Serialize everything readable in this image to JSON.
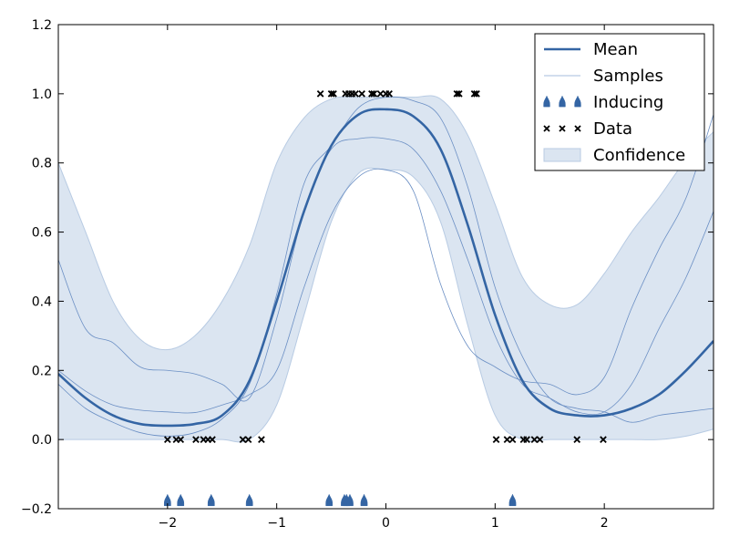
{
  "chart_data": {
    "type": "line",
    "title": "",
    "xlabel": "",
    "ylabel": "",
    "xlim": [
      -3,
      3
    ],
    "ylim": [
      -0.2,
      1.2
    ],
    "xticks": [
      -2,
      -1,
      0,
      1,
      2
    ],
    "xtick_labels": [
      "−2",
      "−1",
      "0",
      "1",
      "2"
    ],
    "yticks": [
      -0.2,
      0.0,
      0.2,
      0.4,
      0.6,
      0.8,
      1.0,
      1.2
    ],
    "ytick_labels": [
      "−0.2",
      "0.0",
      "0.2",
      "0.4",
      "0.6",
      "0.8",
      "1.0",
      "1.2"
    ],
    "grid": false,
    "legend_position": "top-right",
    "legend": [
      {
        "label": "Mean",
        "kind": "line"
      },
      {
        "label": "Samples",
        "kind": "thin-line"
      },
      {
        "label": "Inducing",
        "kind": "marker"
      },
      {
        "label": "Data",
        "kind": "x"
      },
      {
        "label": "Confidence",
        "kind": "band"
      }
    ],
    "colors": {
      "mean": "#3465a4",
      "samples": "#6b8fc4",
      "confidence_fill": "#dbe5f1",
      "confidence_edge": "#b8cbe3",
      "inducing": "#3465a4",
      "data": "#000000"
    },
    "x": [
      -3.0,
      -2.75,
      -2.5,
      -2.25,
      -2.0,
      -1.75,
      -1.5,
      -1.25,
      -1.0,
      -0.75,
      -0.5,
      -0.25,
      0.0,
      0.25,
      0.5,
      0.75,
      1.0,
      1.25,
      1.5,
      1.75,
      2.0,
      2.25,
      2.5,
      2.75,
      3.0
    ],
    "mean": [
      0.19,
      0.12,
      0.07,
      0.045,
      0.04,
      0.045,
      0.07,
      0.17,
      0.4,
      0.66,
      0.85,
      0.94,
      0.955,
      0.935,
      0.84,
      0.62,
      0.36,
      0.17,
      0.09,
      0.07,
      0.07,
      0.09,
      0.13,
      0.2,
      0.285
    ],
    "upper": [
      0.8,
      0.6,
      0.4,
      0.29,
      0.26,
      0.3,
      0.4,
      0.56,
      0.8,
      0.93,
      0.985,
      0.99,
      0.99,
      0.99,
      0.985,
      0.88,
      0.68,
      0.47,
      0.39,
      0.39,
      0.48,
      0.6,
      0.7,
      0.81,
      0.89
    ],
    "lower": [
      0.0,
      0.0,
      0.0,
      0.0,
      0.0,
      0.0,
      0.0,
      0.0,
      0.1,
      0.36,
      0.63,
      0.77,
      0.78,
      0.76,
      0.63,
      0.33,
      0.07,
      0.0,
      0.0,
      0.0,
      0.0,
      0.0,
      0.0,
      0.01,
      0.03
    ],
    "samples": [
      {
        "values": [
          0.2,
          0.14,
          0.1,
          0.085,
          0.08,
          0.078,
          0.1,
          0.13,
          0.2,
          0.44,
          0.65,
          0.76,
          0.78,
          0.72,
          0.45,
          0.27,
          0.21,
          0.17,
          0.16,
          0.13,
          0.18,
          0.38,
          0.55,
          0.7,
          0.94
        ]
      },
      {
        "values": [
          0.52,
          0.32,
          0.28,
          0.21,
          0.2,
          0.19,
          0.16,
          0.12,
          0.35,
          0.66,
          0.84,
          0.87,
          0.87,
          0.84,
          0.72,
          0.52,
          0.3,
          0.16,
          0.12,
          0.08,
          0.08,
          0.16,
          0.32,
          0.47,
          0.66
        ]
      },
      {
        "values": [
          0.16,
          0.09,
          0.05,
          0.02,
          0.01,
          0.02,
          0.06,
          0.16,
          0.42,
          0.74,
          0.85,
          0.96,
          0.99,
          0.98,
          0.93,
          0.73,
          0.44,
          0.24,
          0.12,
          0.09,
          0.08,
          0.05,
          0.07,
          0.08,
          0.09
        ]
      }
    ],
    "inducing_x": [
      -2.0,
      -1.88,
      -1.6,
      -1.25,
      -0.52,
      -0.38,
      -0.36,
      -0.33,
      -0.2,
      1.16
    ],
    "inducing_y": -0.18,
    "data_points": [
      {
        "x": -2.0,
        "y": 0.0
      },
      {
        "x": -1.92,
        "y": 0.0
      },
      {
        "x": -1.88,
        "y": 0.0
      },
      {
        "x": -1.74,
        "y": 0.0
      },
      {
        "x": -1.67,
        "y": 0.0
      },
      {
        "x": -1.63,
        "y": 0.0
      },
      {
        "x": -1.59,
        "y": 0.0
      },
      {
        "x": -1.31,
        "y": 0.0
      },
      {
        "x": -1.26,
        "y": 0.0
      },
      {
        "x": -1.14,
        "y": 0.0
      },
      {
        "x": -0.6,
        "y": 1.0
      },
      {
        "x": -0.5,
        "y": 1.0
      },
      {
        "x": -0.48,
        "y": 1.0
      },
      {
        "x": -0.37,
        "y": 1.0
      },
      {
        "x": -0.34,
        "y": 1.0
      },
      {
        "x": -0.31,
        "y": 1.0
      },
      {
        "x": -0.28,
        "y": 1.0
      },
      {
        "x": -0.22,
        "y": 1.0
      },
      {
        "x": -0.13,
        "y": 1.0
      },
      {
        "x": -0.11,
        "y": 1.0
      },
      {
        "x": -0.05,
        "y": 1.0
      },
      {
        "x": 0.0,
        "y": 1.0
      },
      {
        "x": 0.03,
        "y": 1.0
      },
      {
        "x": 0.65,
        "y": 1.0
      },
      {
        "x": 0.67,
        "y": 1.0
      },
      {
        "x": 0.81,
        "y": 1.0
      },
      {
        "x": 0.83,
        "y": 1.0
      },
      {
        "x": 1.01,
        "y": 0.0
      },
      {
        "x": 1.11,
        "y": 0.0
      },
      {
        "x": 1.16,
        "y": 0.0
      },
      {
        "x": 1.26,
        "y": 0.0
      },
      {
        "x": 1.29,
        "y": 0.0
      },
      {
        "x": 1.36,
        "y": 0.0
      },
      {
        "x": 1.41,
        "y": 0.0
      },
      {
        "x": 1.75,
        "y": 0.0
      },
      {
        "x": 1.99,
        "y": 0.0
      }
    ]
  }
}
